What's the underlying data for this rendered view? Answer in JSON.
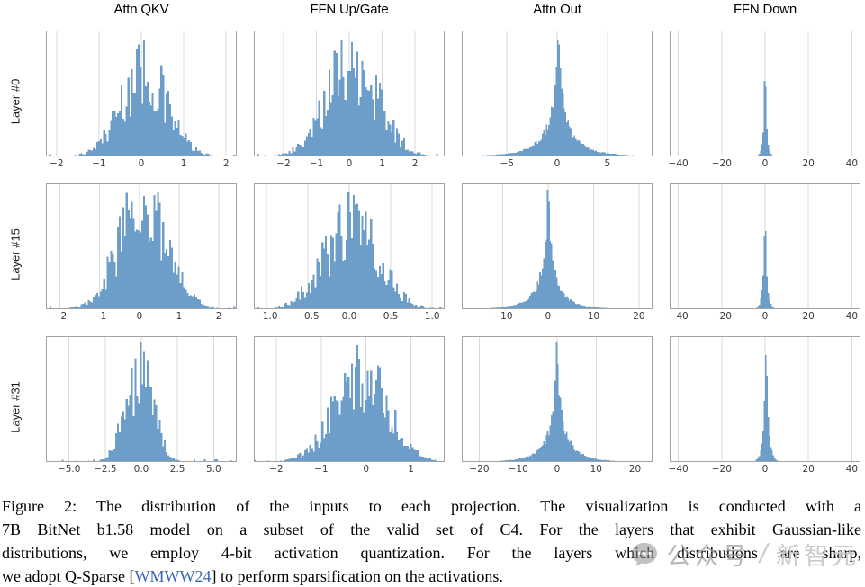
{
  "figure": {
    "columns": [
      "Attn QKV",
      "FFN Up/Gate",
      "Attn Out",
      "FFN Down"
    ],
    "rows": [
      "Layer #0",
      "Layer #15",
      "Layer #31"
    ]
  },
  "chart_data": {
    "type": "bar",
    "subtype": "histogram-grid-3x4",
    "title": "",
    "xlabel": "",
    "ylabel": "",
    "grid": true,
    "legend": false,
    "bar_color": "#6d9dc9",
    "grid_color": "#d9d9d9",
    "frame_color": "#a3a3a3",
    "tick_color": "#3a3a3a",
    "panels": [
      {
        "row": "Layer #0",
        "col": "Attn QKV",
        "xlim": [
          -2.25,
          2.25
        ],
        "tick_values": [
          -2,
          -1,
          0,
          1,
          2
        ],
        "tick_labels": [
          "−2",
          "−1",
          "0",
          "1",
          "2"
        ],
        "dist": {
          "shape": "gaussian",
          "mu": 0.05,
          "sigma": 0.55,
          "peak": 0.92
        }
      },
      {
        "row": "Layer #0",
        "col": "FFN Up/Gate",
        "xlim": [
          -2.9,
          2.9
        ],
        "tick_values": [
          -2,
          -1,
          0,
          1,
          2
        ],
        "tick_labels": [
          "−2",
          "−1",
          "0",
          "1",
          "2"
        ],
        "dist": {
          "shape": "gaussian",
          "mu": 0.1,
          "sigma": 0.78,
          "peak": 0.92
        }
      },
      {
        "row": "Layer #0",
        "col": "Attn Out",
        "xlim": [
          -9.5,
          9.5
        ],
        "tick_values": [
          -5,
          0,
          5
        ],
        "tick_labels": [
          "−5",
          "0",
          "5"
        ],
        "dist": {
          "shape": "sharp",
          "mu": 0.1,
          "sigma": 0.5,
          "peak": 0.93
        }
      },
      {
        "row": "Layer #0",
        "col": "FFN Down",
        "xlim": [
          -44,
          44
        ],
        "tick_values": [
          -40,
          -20,
          0,
          20,
          40
        ],
        "tick_labels": [
          "−40",
          "−20",
          "0",
          "20",
          "40"
        ],
        "dist": {
          "shape": "needle",
          "mu": 0,
          "sigma": 0.6,
          "peak": 0.6
        }
      },
      {
        "row": "Layer #15",
        "col": "Attn QKV",
        "xlim": [
          -2.35,
          2.45
        ],
        "tick_values": [
          -2,
          -1,
          0,
          1,
          2
        ],
        "tick_labels": [
          "−2",
          "−1",
          "0",
          "1",
          "2"
        ],
        "dist": {
          "shape": "gaussian",
          "mu": 0.08,
          "sigma": 0.62,
          "peak": 0.93
        }
      },
      {
        "row": "Layer #15",
        "col": "FFN Up/Gate",
        "xlim": [
          -1.15,
          1.15
        ],
        "tick_values": [
          -1,
          -0.5,
          0,
          0.5,
          1
        ],
        "tick_labels": [
          "−1.0",
          "−0.5",
          "0.0",
          "0.5",
          "1.0"
        ],
        "dist": {
          "shape": "gaussian",
          "mu": 0.02,
          "sigma": 0.33,
          "peak": 0.93
        }
      },
      {
        "row": "Layer #15",
        "col": "Attn Out",
        "xlim": [
          -19,
          23
        ],
        "tick_values": [
          -10,
          0,
          10,
          20
        ],
        "tick_labels": [
          "−10",
          "0",
          "10",
          "20"
        ],
        "dist": {
          "shape": "sharp",
          "mu": 0,
          "sigma": 0.85,
          "peak": 0.95
        }
      },
      {
        "row": "Layer #15",
        "col": "FFN Down",
        "xlim": [
          -44,
          44
        ],
        "tick_values": [
          -40,
          -20,
          0,
          20,
          40
        ],
        "tick_labels": [
          "−40",
          "−20",
          "0",
          "20",
          "40"
        ],
        "dist": {
          "shape": "needle",
          "mu": 0,
          "sigma": 0.75,
          "peak": 0.62
        }
      },
      {
        "row": "Layer #31",
        "col": "Attn QKV",
        "xlim": [
          -6.6,
          6.6
        ],
        "tick_values": [
          -5,
          -2.5,
          0,
          2.5,
          5
        ],
        "tick_labels": [
          "−5.0",
          "−2.5",
          "0.0",
          "2.5",
          "5.0"
        ],
        "dist": {
          "shape": "gaussian",
          "mu": -0.15,
          "sigma": 0.95,
          "peak": 0.95
        }
      },
      {
        "row": "Layer #31",
        "col": "FFN Up/Gate",
        "xlim": [
          -2.5,
          1.75
        ],
        "tick_values": [
          -2,
          -1,
          0,
          1
        ],
        "tick_labels": [
          "−2",
          "−1",
          "0",
          "1"
        ],
        "dist": {
          "shape": "gaussian",
          "mu": -0.12,
          "sigma": 0.6,
          "peak": 0.93
        }
      },
      {
        "row": "Layer #31",
        "col": "Attn Out",
        "xlim": [
          -24.5,
          24.5
        ],
        "tick_values": [
          -20,
          -10,
          0,
          10,
          20
        ],
        "tick_labels": [
          "−20",
          "−10",
          "0",
          "10",
          "20"
        ],
        "dist": {
          "shape": "sharp",
          "mu": 0,
          "sigma": 1.0,
          "peak": 0.95
        }
      },
      {
        "row": "Layer #31",
        "col": "FFN Down",
        "xlim": [
          -44,
          44
        ],
        "tick_values": [
          -40,
          -20,
          0,
          20,
          40
        ],
        "tick_labels": [
          "−40",
          "−20",
          "0",
          "20",
          "40"
        ],
        "dist": {
          "shape": "needle",
          "mu": 0.5,
          "sigma": 0.9,
          "peak": 0.85
        }
      }
    ]
  },
  "caption": {
    "lines": [
      "Figure 2: The distribution of the inputs to each projection. The visualization is conducted with a",
      "7B BitNet b1.58 model on a subset of the valid set of C4. For the layers that exhibit Gaussian-like",
      "distributions, we employ 4-bit activation quantization. For the layers which distributions are sharp,"
    ],
    "line4": {
      "pre": "we adopt Q-Sparse [",
      "link": "WMWW24",
      "post": "] to perform sparsification on the activations."
    },
    "link_color": "#3a66b4"
  },
  "watermark": {
    "account": "公众号",
    "separator": "/",
    "brand": "新智元"
  }
}
